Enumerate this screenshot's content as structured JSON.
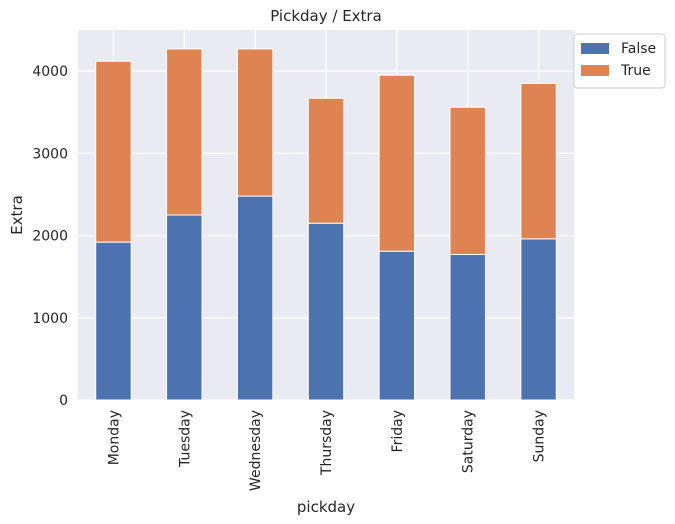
{
  "chart_data": {
    "type": "bar",
    "stacked": true,
    "title": "Pickday / Extra",
    "xlabel": "pickday",
    "ylabel": "Extra",
    "categories": [
      "Monday",
      "Tuesday",
      "Wednesday",
      "Thursday",
      "Friday",
      "Saturday",
      "Sunday"
    ],
    "series": [
      {
        "name": "False",
        "color": "#4c72b0",
        "values": [
          1920,
          2250,
          2480,
          2150,
          1810,
          1770,
          1960
        ]
      },
      {
        "name": "True",
        "color": "#dd8452",
        "values": [
          2200,
          2020,
          1790,
          1520,
          2140,
          1790,
          1890
        ]
      }
    ],
    "ylim": [
      0,
      4500
    ],
    "yticks": [
      0,
      1000,
      2000,
      3000,
      4000
    ],
    "grid": true,
    "legend_position": "upper-right-outside",
    "background_color": "#eaeaf2"
  }
}
